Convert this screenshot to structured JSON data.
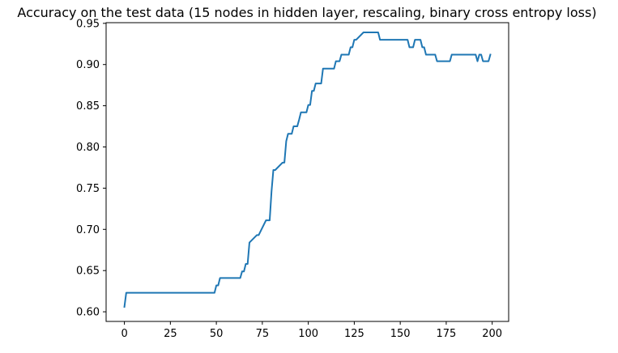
{
  "chart_data": {
    "type": "line",
    "title": "Accuracy on the test data (15 nodes in hidden layer, rescaling, binary cross entropy loss)",
    "xlabel": "",
    "ylabel": "",
    "xlim": [
      -9.95,
      208.95
    ],
    "ylim": [
      0.5883,
      0.9508
    ],
    "xticks": [
      0,
      25,
      50,
      75,
      100,
      125,
      150,
      175,
      200
    ],
    "yticks": [
      0.6,
      0.65,
      0.7,
      0.75,
      0.8,
      0.85,
      0.9,
      0.95
    ],
    "ytick_labels": [
      "0.60",
      "0.65",
      "0.70",
      "0.75",
      "0.80",
      "0.85",
      "0.90",
      "0.95"
    ],
    "grid": false,
    "legend": "none",
    "series": [
      {
        "color": "#1f77b4",
        "x": [
          0,
          1,
          2,
          48,
          49,
          50,
          51,
          52,
          63,
          64,
          65,
          66,
          67,
          68,
          72,
          73,
          77,
          78,
          79,
          80,
          81,
          82,
          86,
          87,
          88,
          89,
          90,
          91,
          92,
          94,
          95,
          96,
          99,
          100,
          101,
          102,
          103,
          104,
          107,
          108,
          114,
          115,
          116,
          117,
          118,
          122,
          123,
          124,
          125,
          126,
          130,
          131,
          137,
          138,
          139,
          140,
          154,
          155,
          157,
          158,
          161,
          162,
          163,
          164,
          169,
          170,
          177,
          178,
          190,
          191,
          192,
          193,
          194,
          195,
          196,
          197,
          198,
          199
        ],
        "y": [
          0.606,
          0.623,
          0.623,
          0.623,
          0.623,
          0.632,
          0.632,
          0.641,
          0.641,
          0.649,
          0.649,
          0.658,
          0.658,
          0.684,
          0.693,
          0.693,
          0.711,
          0.711,
          0.711,
          0.746,
          0.772,
          0.772,
          0.781,
          0.781,
          0.807,
          0.816,
          0.816,
          0.816,
          0.825,
          0.825,
          0.833,
          0.842,
          0.842,
          0.851,
          0.851,
          0.868,
          0.868,
          0.877,
          0.877,
          0.895,
          0.895,
          0.904,
          0.904,
          0.904,
          0.912,
          0.912,
          0.921,
          0.921,
          0.93,
          0.93,
          0.939,
          0.939,
          0.939,
          0.939,
          0.93,
          0.93,
          0.93,
          0.921,
          0.921,
          0.93,
          0.93,
          0.921,
          0.921,
          0.912,
          0.912,
          0.904,
          0.904,
          0.912,
          0.912,
          0.912,
          0.904,
          0.912,
          0.912,
          0.904,
          0.904,
          0.904,
          0.904,
          0.912
        ]
      }
    ]
  }
}
